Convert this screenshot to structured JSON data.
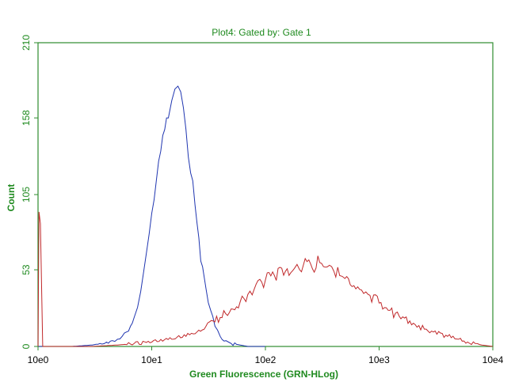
{
  "chart_data": {
    "type": "line",
    "title": "Plot4:  Gated by: Gate 1",
    "xlabel": "Green Fluorescence (GRN-HLog)",
    "ylabel": "Count",
    "x_scale": "log",
    "xlim": [
      1,
      10000
    ],
    "ylim": [
      0,
      210
    ],
    "x_ticks": [
      {
        "value": 1,
        "label": "10e0"
      },
      {
        "value": 10,
        "label": "10e1"
      },
      {
        "value": 100,
        "label": "10e2"
      },
      {
        "value": 1000,
        "label": "10e3"
      },
      {
        "value": 10000,
        "label": "10e4"
      }
    ],
    "y_ticks": [
      {
        "value": 0,
        "label": "0"
      },
      {
        "value": 53,
        "label": "53"
      },
      {
        "value": 105,
        "label": "105"
      },
      {
        "value": 158,
        "label": "158"
      },
      {
        "value": 210,
        "label": "210"
      }
    ],
    "grid": false,
    "colors": {
      "axis": "#2e8b2e",
      "text": "#1f8a1f",
      "series_blue": "#1f35b0",
      "series_red": "#c0282a"
    },
    "series": [
      {
        "color": "#1f35b0",
        "x": [
          1,
          2,
          3,
          3.5,
          4,
          4.5,
          5,
          5.5,
          6,
          6.5,
          7,
          7.5,
          8,
          8.5,
          9,
          9.5,
          10,
          11,
          12,
          13,
          14,
          15,
          16,
          17,
          18,
          19,
          20,
          22,
          24,
          26,
          28,
          30,
          33,
          36,
          40,
          45,
          50,
          60,
          70,
          100
        ],
        "y": [
          0,
          0,
          1,
          2,
          3,
          4,
          5,
          7,
          10,
          14,
          20,
          27,
          38,
          52,
          65,
          78,
          92,
          115,
          135,
          150,
          158,
          170,
          178,
          180,
          176,
          165,
          150,
          120,
          98,
          75,
          55,
          40,
          25,
          14,
          7,
          4,
          2,
          1,
          0,
          0
        ]
      },
      {
        "color": "#c0282a",
        "x": [
          1,
          1.02,
          1.05,
          1.1,
          2,
          3,
          5,
          7,
          10,
          15,
          20,
          25,
          30,
          40,
          50,
          60,
          70,
          80,
          100,
          120,
          150,
          180,
          200,
          250,
          300,
          350,
          400,
          450,
          500,
          600,
          700,
          800,
          1000,
          1200,
          1500,
          2000,
          2500,
          3000,
          4000,
          5000,
          6000,
          7000,
          8000,
          10000
        ],
        "y": [
          0,
          93,
          85,
          0,
          0,
          0,
          1,
          2,
          3,
          5,
          7,
          10,
          14,
          20,
          26,
          31,
          36,
          40,
          46,
          49,
          52,
          54,
          53,
          57,
          58,
          55,
          52,
          49,
          47,
          42,
          39,
          36,
          30,
          25,
          21,
          16,
          12,
          10,
          7,
          5,
          3,
          2,
          1,
          0
        ]
      }
    ]
  }
}
